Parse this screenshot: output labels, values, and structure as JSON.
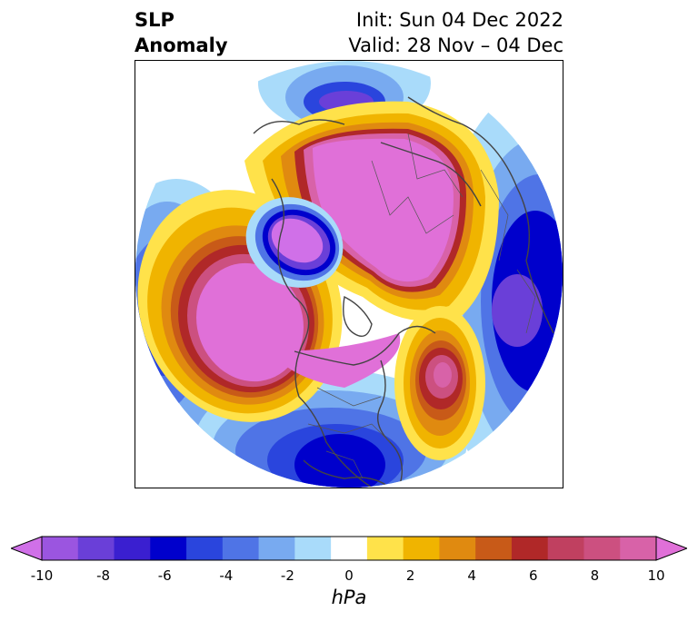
{
  "title": {
    "left_line1": "SLP",
    "left_line2": "Anomaly",
    "right_line1": "Init: Sun 04 Dec 2022",
    "right_line2": "Valid: 28 Nov – 04 Dec"
  },
  "map": {
    "projection": "north polar stereographic",
    "features": [
      "coastlines",
      "country borders",
      "state/province borders"
    ]
  },
  "colorbar": {
    "unit": "hPa",
    "min": -10,
    "max": 10,
    "extend": "both",
    "tick_labels": [
      "-10",
      "-8",
      "-6",
      "-4",
      "-2",
      "0",
      "2",
      "4",
      "6",
      "8",
      "10"
    ],
    "colors": [
      "#d070e8",
      "#9b55e0",
      "#6a3fd8",
      "#3a1fd0",
      "#0000cc",
      "#2a45dd",
      "#4f74e6",
      "#78aaf0",
      "#a9dbfa",
      "#ffffff",
      "#ffe24a",
      "#f0b400",
      "#e08a10",
      "#c85a18",
      "#b02828",
      "#c04060",
      "#cc5080",
      "#d862a8",
      "#e070d8"
    ]
  }
}
